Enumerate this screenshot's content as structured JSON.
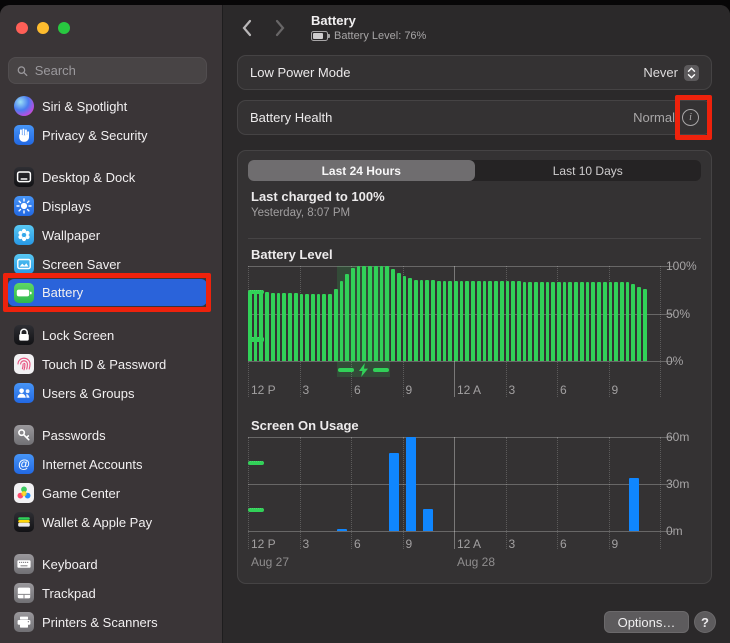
{
  "traffic_lights": {
    "close": "#ff5f57",
    "minimize": "#febc2e",
    "zoom": "#28c840"
  },
  "sidebar": {
    "search": {
      "placeholder": "Search",
      "icon": "search-icon"
    },
    "selected_id": "battery",
    "selected_color": "#2a63da",
    "groups": [
      {
        "items": [
          {
            "id": "siri",
            "label": "Siri & Spotlight",
            "icon": "siri-icon"
          },
          {
            "id": "privacy",
            "label": "Privacy & Security",
            "icon": "privacy-hand-icon"
          }
        ]
      },
      {
        "items": [
          {
            "id": "desktop",
            "label": "Desktop & Dock",
            "icon": "desktop-dock-icon"
          },
          {
            "id": "displays",
            "label": "Displays",
            "icon": "displays-sun-icon"
          },
          {
            "id": "wallpaper",
            "label": "Wallpaper",
            "icon": "wallpaper-flower-icon"
          },
          {
            "id": "screensaver",
            "label": "Screen Saver",
            "icon": "screen-saver-icon"
          },
          {
            "id": "battery",
            "label": "Battery",
            "icon": "battery-icon",
            "selected": true,
            "annotated": true
          }
        ]
      },
      {
        "items": [
          {
            "id": "lock",
            "label": "Lock Screen",
            "icon": "lock-icon"
          },
          {
            "id": "touchid",
            "label": "Touch ID & Password",
            "icon": "fingerprint-icon"
          },
          {
            "id": "users",
            "label": "Users & Groups",
            "icon": "users-icon"
          }
        ]
      },
      {
        "items": [
          {
            "id": "passwords",
            "label": "Passwords",
            "icon": "key-icon"
          },
          {
            "id": "internet",
            "label": "Internet Accounts",
            "icon": "at-sign-icon"
          },
          {
            "id": "game",
            "label": "Game Center",
            "icon": "game-center-bubbles-icon"
          },
          {
            "id": "wallet",
            "label": "Wallet & Apple Pay",
            "icon": "wallet-cards-icon"
          }
        ]
      },
      {
        "items": [
          {
            "id": "keyboard",
            "label": "Keyboard",
            "icon": "keyboard-icon"
          },
          {
            "id": "trackpad",
            "label": "Trackpad",
            "icon": "trackpad-icon"
          },
          {
            "id": "printers",
            "label": "Printers & Scanners",
            "icon": "printer-icon"
          }
        ]
      }
    ]
  },
  "header": {
    "back_icon": "chevron-left-icon",
    "forward_icon": "chevron-right-icon",
    "title": "Battery",
    "battery_status_icon": "battery-three-quarters-icon",
    "subtitle": "Battery Level: 76%"
  },
  "settings_rows": [
    {
      "id": "low-power-mode",
      "label": "Low Power Mode",
      "value": "Never",
      "control": "stepper"
    },
    {
      "id": "battery-health",
      "label": "Battery Health",
      "value": "Normal",
      "control": "info",
      "annotated": true
    }
  ],
  "usage_panel": {
    "tabs": [
      {
        "label": "Last 24 Hours",
        "selected": true
      },
      {
        "label": "Last 10 Days",
        "selected": false
      }
    ],
    "last_charged": {
      "title": "Last charged to 100%",
      "subtitle": "Yesterday, 8:07 PM"
    }
  },
  "chart_data": [
    {
      "id": "battery-level",
      "type": "bar",
      "title": "Battery Level",
      "x_tick_labels": [
        "12 P",
        "3",
        "6",
        "9",
        "12 A",
        "3",
        "6",
        "9"
      ],
      "x_range_hours": 24,
      "bin_minutes": 20,
      "y_tick_labels": [
        "100%",
        "50%",
        "0%"
      ],
      "ylim": [
        0,
        100
      ],
      "grid": true,
      "bar_color": "#31d158",
      "values": [
        73,
        73,
        73,
        73,
        72,
        72,
        72,
        72,
        72,
        71,
        71,
        71,
        71,
        71,
        71,
        76,
        84,
        92,
        98,
        100,
        100,
        100,
        100,
        100,
        100,
        97,
        93,
        90,
        87,
        85,
        85,
        85,
        85,
        84,
        84,
        84,
        84,
        84,
        84,
        84,
        84,
        84,
        84,
        84,
        84,
        84,
        84,
        84,
        83,
        83,
        83,
        83,
        83,
        83,
        83,
        83,
        83,
        83,
        83,
        83,
        83,
        83,
        83,
        83,
        83,
        83,
        83,
        81,
        78,
        76
      ],
      "charging_window": {
        "start_hour": 5.2,
        "end_hour": 8.3,
        "icon": "charging-bolt-icon"
      }
    },
    {
      "id": "screen-on-usage",
      "type": "bar",
      "title": "Screen On Usage",
      "x_tick_labels": [
        "12 P",
        "3",
        "6",
        "9",
        "12 A",
        "3",
        "6",
        "9"
      ],
      "x_range_hours": 24,
      "bin_minutes": 60,
      "y_tick_labels": [
        "60m",
        "30m",
        "0m"
      ],
      "ylim": [
        0,
        60
      ],
      "grid": true,
      "bar_color": "#0f86ff",
      "values": [
        0,
        0,
        0,
        0,
        0,
        1,
        0,
        0,
        50,
        60,
        14,
        0,
        0,
        0,
        0,
        0,
        0,
        0,
        0,
        0,
        0,
        0,
        34,
        0
      ],
      "date_labels": [
        "Aug 27",
        "Aug 28"
      ]
    }
  ],
  "footer": {
    "options_label": "Options…",
    "help_label": "?"
  },
  "annotations": {
    "color": "#ee220c",
    "targets": [
      "sidebar-item-battery",
      "battery-health-info-button"
    ]
  }
}
